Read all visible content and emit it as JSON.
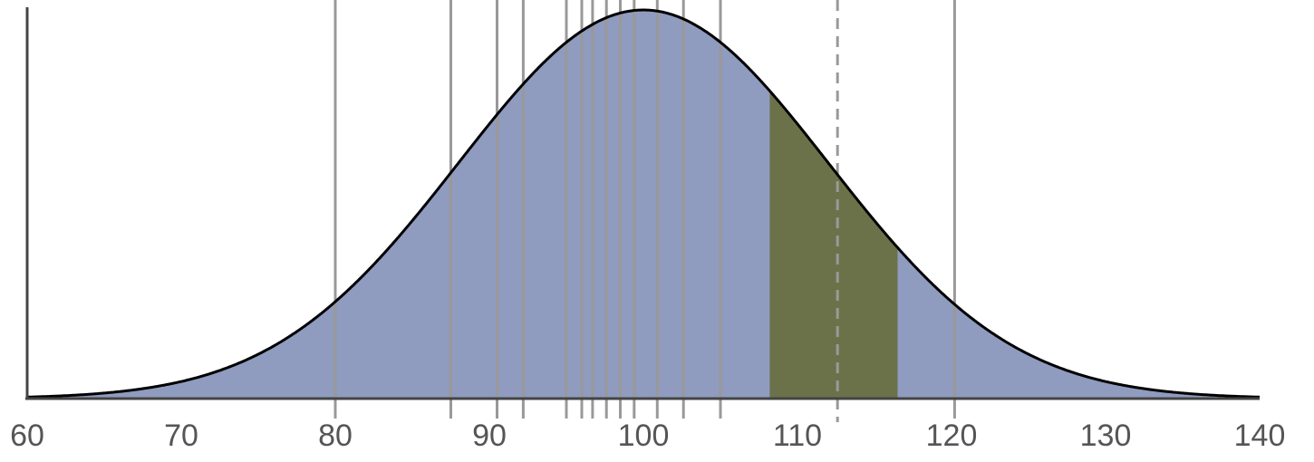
{
  "chart_data": {
    "type": "area",
    "title": "",
    "xlabel": "",
    "ylabel": "",
    "distribution": {
      "kind": "normal",
      "mean": 100,
      "sd": 12
    },
    "xlim": [
      60,
      140
    ],
    "x_ticks": [
      60,
      70,
      80,
      90,
      100,
      110,
      120,
      130,
      140
    ],
    "x_tick_labels": [
      "60",
      "70",
      "80",
      "90",
      "100",
      "110",
      "120",
      "130",
      "140"
    ],
    "highlight_range": [
      108.2,
      116.5
    ],
    "vertical_lines": [
      80,
      87.5,
      90.5,
      92.2,
      95.0,
      96.0,
      96.7,
      97.6,
      98.5,
      99.4,
      100.9,
      102.6,
      105.0,
      120.2
    ],
    "dashed_line": 112.6,
    "grid": false,
    "legend": "none",
    "colors": {
      "fill": "#8f9bbf",
      "highlight": "#6b7249",
      "curve": "#000000",
      "lines": "#999999",
      "dashed": "#999999",
      "axis": "#444444"
    }
  }
}
